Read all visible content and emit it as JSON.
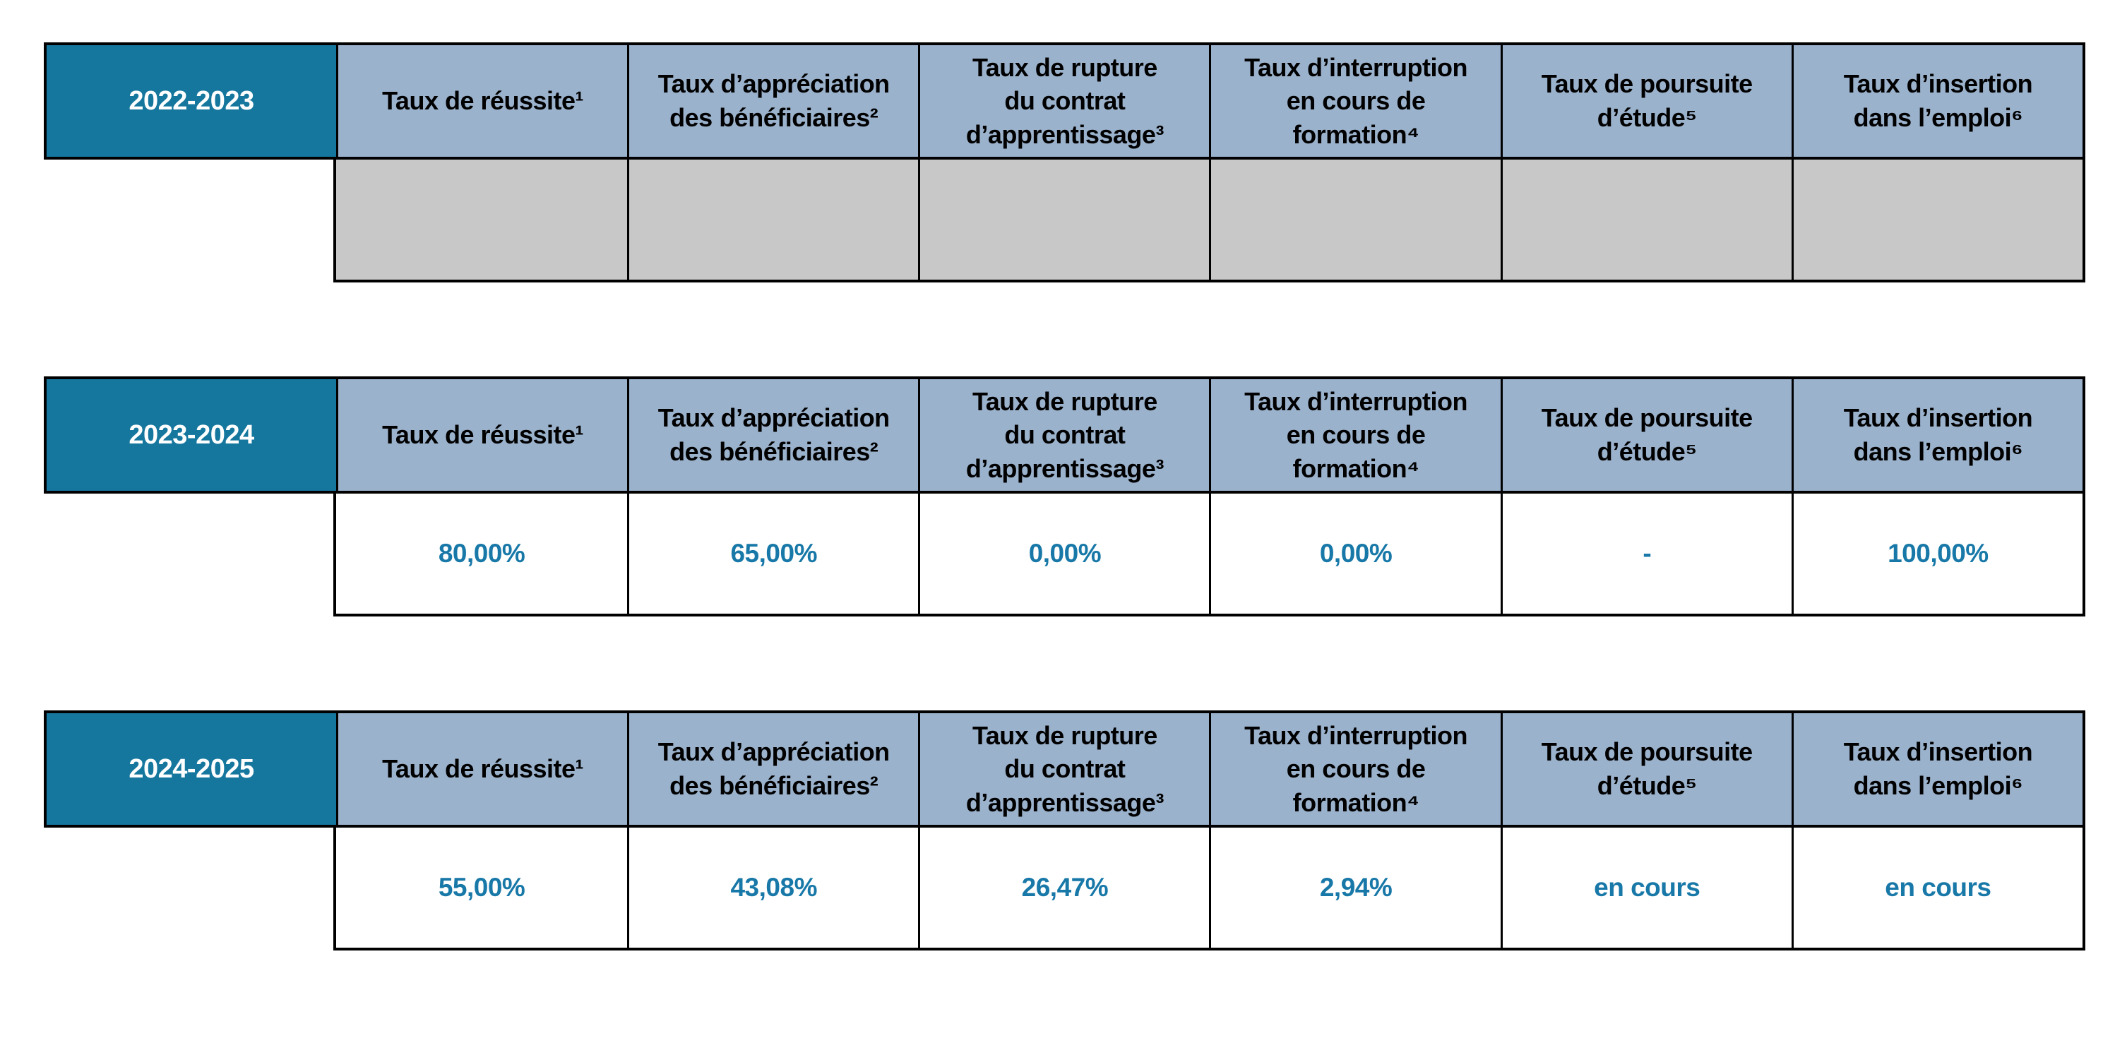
{
  "columns": [
    {
      "label": "Taux de réussite¹"
    },
    {
      "label": "Taux d’appréciation\ndes bénéficiaires²"
    },
    {
      "label": "Taux de rupture\ndu contrat\nd’apprentissage³"
    },
    {
      "label": "Taux d’interruption\nen cours de\nformation⁴"
    },
    {
      "label": "Taux de poursuite\nd’étude⁵"
    },
    {
      "label": "Taux d’insertion\ndans l’emploi⁶"
    }
  ],
  "tables": [
    {
      "year": "2022-2023",
      "values": [
        "",
        "",
        "",
        "",
        "",
        ""
      ]
    },
    {
      "year": "2023-2024",
      "values": [
        "80,00%",
        "65,00%",
        "0,00%",
        "0,00%",
        "-",
        "100,00%"
      ]
    },
    {
      "year": "2024-2025",
      "values": [
        "55,00%",
        "43,08%",
        "26,47%",
        "2,94%",
        "en cours",
        "en cours"
      ]
    }
  ],
  "colors": {
    "year_header_bg": "#16779E",
    "column_header_bg": "#9BB2CC",
    "empty_row_bg": "#C8C8C8",
    "value_text": "#1878A8",
    "border": "#000000"
  }
}
